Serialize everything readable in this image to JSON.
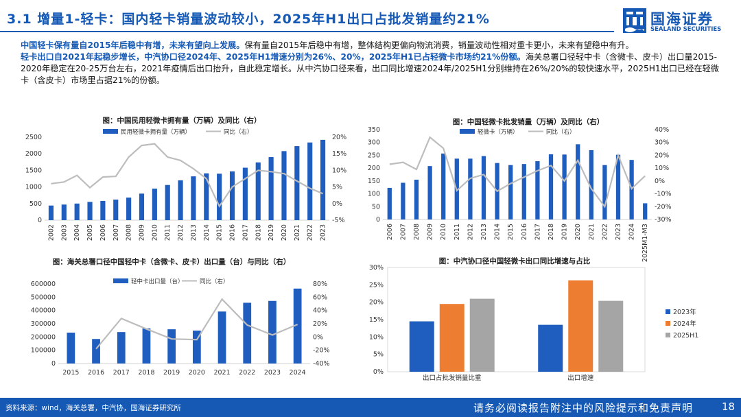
{
  "header": {
    "title": "3.1 增量1-轻卡：国内轻卡销量波动较小，2025年H1出口占批发销量约21%",
    "logo_cn": "国海证券",
    "logo_en": "SEALAND SECURITIES"
  },
  "summary": {
    "p1_hl": "中国轻卡保有量自2015年后稳中有增，未来有望向上发展。",
    "p1_text": "保有量自2015年后稳中有增，整体结构更偏向物流消费，销量波动性相对重卡更小，未来有望稳中有升。",
    "p2_hl": "轻卡出口自2021年起稳步增长，中汽协口径2024年、2025年H1增速分别为26%、20%，2025年H1已占轻微卡市场约21%份额。",
    "p2_text": "海关总署口径轻中卡（含微卡、皮卡）出口量2015-2020年稳定在20-25万台左右，2021年疫情后出口抬升，自此稳定增长。从中汽协口径来看，出口同比增速2024年/2025H1分别维持在26%/20%的较快速水平，2025H1出口已经在轻微卡（含皮卡）市场里占据21%的份额。"
  },
  "footer": {
    "source": "资料来源：wind，海关总署，中汽协，国海证券研究所",
    "disclaimer": "请务必阅读报告附注中的风险提示和免责声明",
    "page": "18"
  },
  "colors": {
    "brand": "#1559B5",
    "bar": "#1F5DBE",
    "line": "#BDBDBD",
    "orange": "#ED7D31",
    "gray": "#A5A5A5"
  },
  "chart_data": [
    {
      "id": "chart1",
      "type": "bar",
      "title": "图：中国民用轻微卡拥有量（万辆）及同比（右）",
      "legend": [
        "民用轻微卡拥有量（万辆）",
        "同比（右）"
      ],
      "categories": [
        "2002",
        "2003",
        "2004",
        "2005",
        "2006",
        "2007",
        "2008",
        "2009",
        "2010",
        "2011",
        "2012",
        "2013",
        "2014",
        "2015",
        "2016",
        "2017",
        "2018",
        "2019",
        "2020",
        "2021",
        "2022",
        "2023"
      ],
      "values": [
        440,
        470,
        500,
        550,
        580,
        620,
        680,
        800,
        950,
        1060,
        1200,
        1320,
        1410,
        1400,
        1470,
        1580,
        1740,
        1900,
        2080,
        2230,
        2340,
        2420
      ],
      "line_values": [
        6,
        6.5,
        8.5,
        4.8,
        8,
        8.2,
        14,
        17.5,
        18,
        14,
        13,
        10.5,
        7.5,
        -0.8,
        5,
        7.5,
        10,
        9.6,
        9,
        6.8,
        4.6,
        3
      ],
      "ylim": [
        0,
        2500
      ],
      "yticks": [
        "0",
        "500",
        "1000",
        "1500",
        "2000",
        "2500"
      ],
      "y2lim": [
        -5,
        20
      ],
      "y2ticks": [
        "-5%",
        "0%",
        "5%",
        "10%",
        "15%",
        "20%"
      ]
    },
    {
      "id": "chart2",
      "type": "bar",
      "title": "图：中国轻微卡批发销量（万辆）及同比（右）",
      "legend": [
        "轻微卡（万辆）",
        "同比（右）"
      ],
      "categories": [
        "2006",
        "2007",
        "2008",
        "2009",
        "2010",
        "2011",
        "2012",
        "2013",
        "2014",
        "2015",
        "2016",
        "2017",
        "2018",
        "2019",
        "2020",
        "2021",
        "2022",
        "2023",
        "2024",
        "2025M1-M3"
      ],
      "values": [
        123,
        143,
        155,
        208,
        257,
        237,
        237,
        247,
        220,
        212,
        216,
        227,
        254,
        253,
        293,
        270,
        212,
        252,
        232,
        63
      ],
      "line_values": [
        13,
        14.5,
        9,
        34,
        25.5,
        -7.5,
        2,
        5,
        -8,
        -2,
        3,
        8,
        12,
        0,
        16,
        -6,
        -20,
        20,
        -6,
        4
      ],
      "ylim": [
        0,
        350
      ],
      "yticks": [
        "0",
        "50",
        "100",
        "150",
        "200",
        "250",
        "300",
        "350"
      ],
      "y2lim": [
        -30,
        40
      ],
      "y2ticks": [
        "-30%",
        "-20%",
        "-10%",
        "0%",
        "10%",
        "20%",
        "30%",
        "40%"
      ]
    },
    {
      "id": "chart3",
      "type": "bar",
      "title": "图：海关总署口径中国轻中卡（含微卡、皮卡）出口量（台）与同比（右）",
      "legend": [
        "轻中卡出口量（台）",
        "同比（右）"
      ],
      "categories": [
        "2015",
        "2016",
        "2017",
        "2018",
        "2019",
        "2020",
        "2021",
        "2022",
        "2023",
        "2024"
      ],
      "values": [
        233000,
        185000,
        237000,
        265000,
        258000,
        248000,
        392000,
        458000,
        472000,
        565000
      ],
      "line_values": [
        null,
        -18,
        28,
        12,
        -3,
        -4,
        57,
        18,
        3,
        19
      ],
      "ylim": [
        0,
        600000
      ],
      "yticks": [
        "0",
        "100000",
        "200000",
        "300000",
        "400000",
        "500000",
        "600000"
      ],
      "y2lim": [
        -40,
        80
      ],
      "y2ticks": [
        "-40%",
        "-20%",
        "0%",
        "20%",
        "40%",
        "60%",
        "80%"
      ]
    },
    {
      "id": "chart4",
      "type": "bar",
      "title": "图：中汽协口径中国轻微卡出口同比增速与占比",
      "categories": [
        "出口占批发销量比重",
        "出口增速"
      ],
      "series": [
        {
          "name": "2023年",
          "values": [
            14.5,
            13.5
          ]
        },
        {
          "name": "2024年",
          "values": [
            19.5,
            26.3
          ]
        },
        {
          "name": "2025H1",
          "values": [
            21.0,
            20.4
          ]
        }
      ],
      "ylim": [
        0,
        30
      ],
      "yticks": [
        "0%",
        "5%",
        "10%",
        "15%",
        "20%",
        "25%",
        "30%"
      ]
    }
  ]
}
